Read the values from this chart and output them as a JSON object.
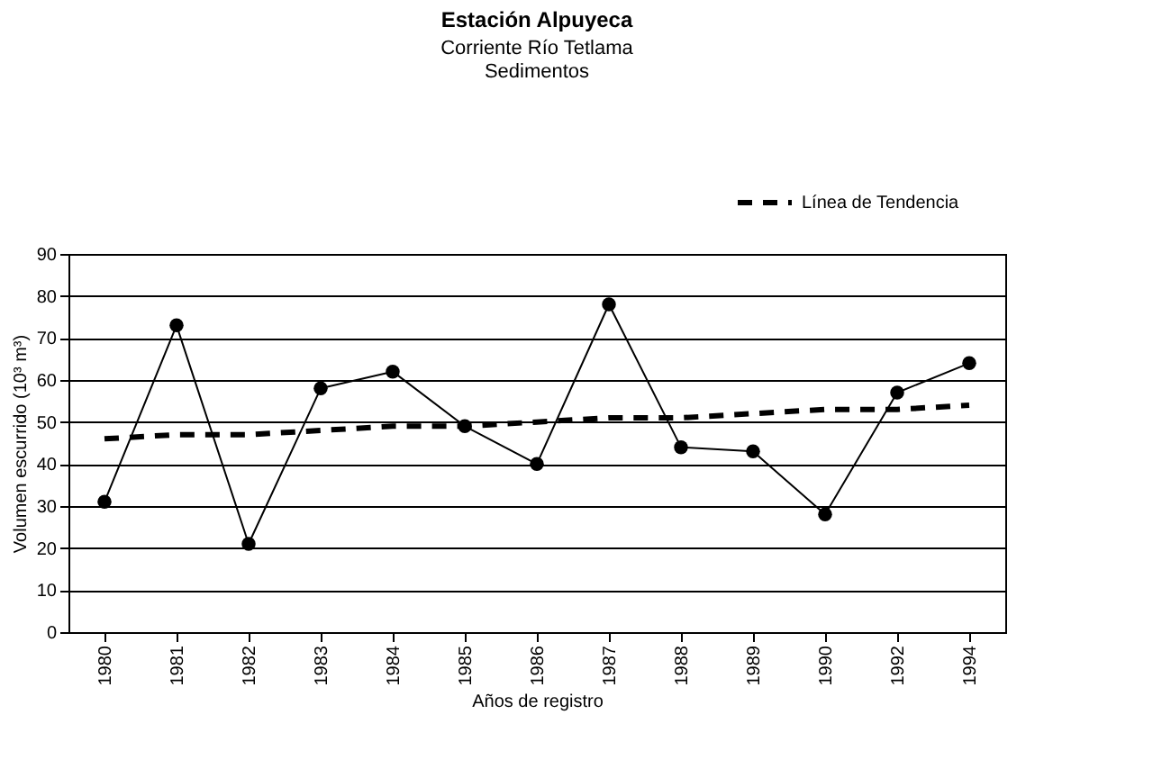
{
  "chart_data": {
    "type": "line",
    "title": "Estación Alpuyeca",
    "subtitle": "Corriente Río Tetlama\nSedimentos",
    "xlabel": "Años de registro",
    "ylabel": "Volumen escurrido (10³ m³)",
    "categories": [
      "1980",
      "1981",
      "1982",
      "1983",
      "1984",
      "1985",
      "1986",
      "1987",
      "1988",
      "1989",
      "1990",
      "1992",
      "1994"
    ],
    "series": [
      {
        "color": "#000000",
        "marker": "circle",
        "line_style": "solid",
        "values": [
          31,
          73,
          21,
          58,
          62,
          49,
          40,
          78,
          44,
          43,
          28,
          57,
          64
        ]
      },
      {
        "name": "Línea de Tendencia",
        "color": "#000000",
        "marker": "none",
        "line_style": "dashed",
        "values": [
          46,
          47,
          47,
          48,
          49,
          49,
          50,
          51,
          51,
          52,
          53,
          53,
          54
        ]
      }
    ],
    "ylim": [
      0,
      90
    ],
    "yticks": [
      0,
      10,
      20,
      30,
      40,
      50,
      60,
      70,
      80,
      90
    ],
    "grid": "y",
    "legend": "top right"
  }
}
